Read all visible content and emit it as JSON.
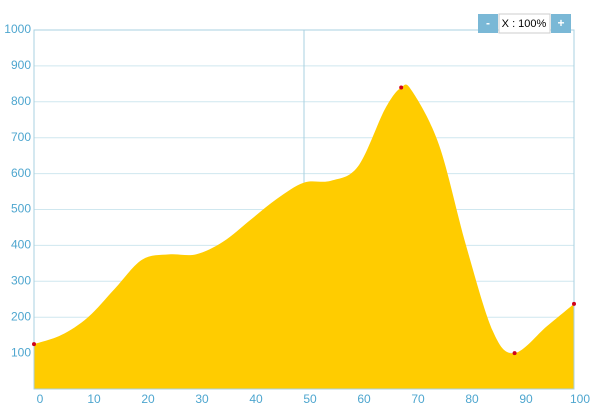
{
  "chart_data": {
    "type": "area",
    "x": [
      0,
      5,
      10,
      15,
      20,
      25,
      30,
      35,
      40,
      45,
      50,
      55,
      60,
      65,
      68,
      70,
      75,
      80,
      85,
      89,
      95,
      100
    ],
    "values": [
      125,
      150,
      200,
      280,
      360,
      375,
      375,
      410,
      470,
      530,
      575,
      580,
      620,
      780,
      840,
      830,
      680,
      400,
      160,
      100,
      175,
      237
    ],
    "color": "#ffcc00",
    "marker_x": [
      0,
      68,
      89,
      100
    ],
    "marker_values": [
      125,
      840,
      100,
      237
    ],
    "marker_color": "#d0021b",
    "xlim": [
      0,
      100
    ],
    "ylim": [
      0,
      1000
    ],
    "xticks": [
      0,
      10,
      20,
      30,
      40,
      50,
      60,
      70,
      80,
      90,
      100
    ],
    "yticks": [
      100,
      200,
      300,
      400,
      500,
      600,
      700,
      800,
      900,
      1000
    ],
    "x_grid_lines": [
      50
    ],
    "grid": true,
    "zoom": {
      "minus": "-",
      "label": "X : 100%",
      "plus": "+"
    }
  }
}
